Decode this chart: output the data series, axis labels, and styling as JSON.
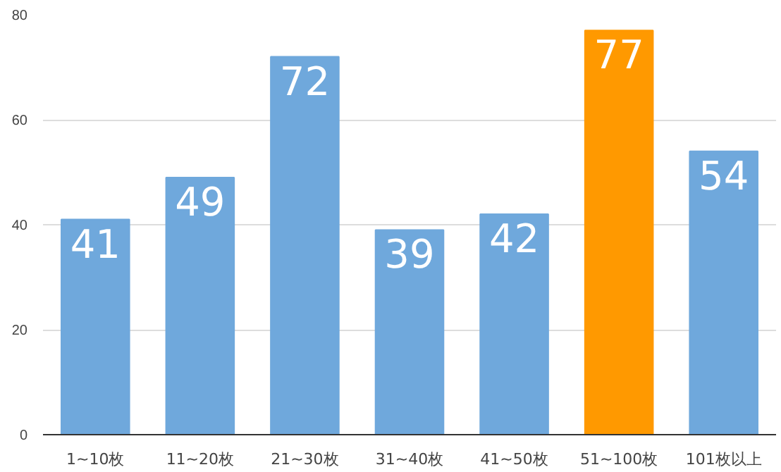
{
  "chart_data": {
    "type": "bar",
    "categories": [
      "1~10枚",
      "11~20枚",
      "21~30枚",
      "31~40枚",
      "41~50枚",
      "51~100枚",
      "101枚以上"
    ],
    "values": [
      41,
      49,
      72,
      39,
      42,
      77,
      54
    ],
    "colors": [
      "#6fa8dc",
      "#6fa8dc",
      "#6fa8dc",
      "#6fa8dc",
      "#6fa8dc",
      "#ff9900",
      "#6fa8dc"
    ],
    "ylim": [
      0,
      80
    ],
    "yticks": [
      0,
      20,
      40,
      60,
      80
    ],
    "grid": "y",
    "data_labels": true
  }
}
